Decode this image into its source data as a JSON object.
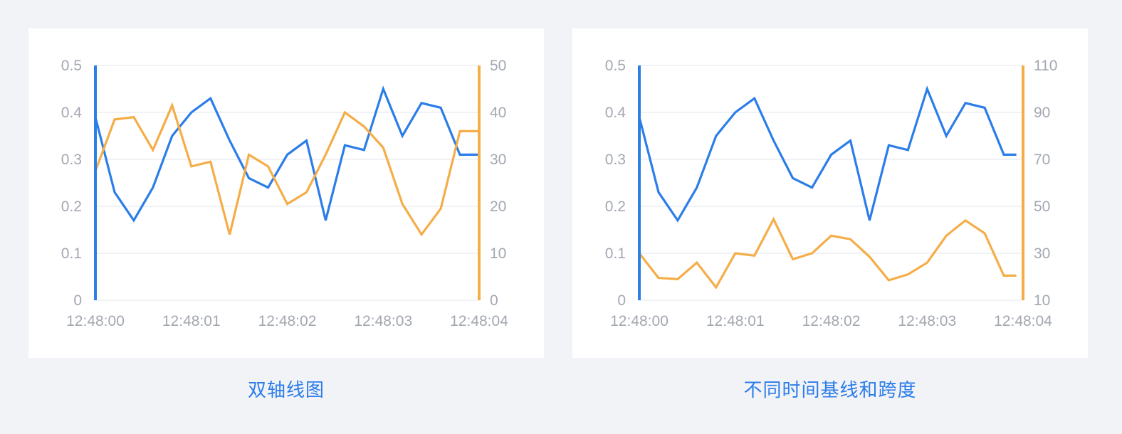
{
  "colors": {
    "left_axis": "#2b7de9",
    "right_axis": "#f5ad47",
    "grid": "#eceef2",
    "tick_text": "#a3a7b1"
  },
  "captions": [
    "双轴线图",
    "不同时间基线和跨度"
  ],
  "chart_data": [
    {
      "type": "line",
      "title": "",
      "x_ticks": [
        "12:48:00",
        "12:48:01",
        "12:48:02",
        "12:48:03",
        "12:48:04"
      ],
      "x_range": [
        0,
        4
      ],
      "y_left": {
        "range": [
          0,
          0.5
        ],
        "ticks": [
          "0",
          "0.1",
          "0.2",
          "0.3",
          "0.4",
          "0.5"
        ]
      },
      "y_right": {
        "range": [
          0,
          50
        ],
        "ticks": [
          "0",
          "10",
          "20",
          "30",
          "40",
          "50"
        ]
      },
      "grid": true,
      "series": [
        {
          "axis": "left",
          "color": "#2b7de9",
          "x": [
            0,
            0.2,
            0.4,
            0.6,
            0.8,
            1.0,
            1.2,
            1.4,
            1.6,
            1.8,
            2.0,
            2.2,
            2.4,
            2.6,
            2.8,
            3.0,
            3.2,
            3.4,
            3.6,
            3.8,
            4.0
          ],
          "values": [
            0.39,
            0.23,
            0.17,
            0.24,
            0.35,
            0.4,
            0.43,
            0.34,
            0.26,
            0.24,
            0.31,
            0.34,
            0.17,
            0.33,
            0.32,
            0.45,
            0.35,
            0.42,
            0.41,
            0.31,
            0.31
          ]
        },
        {
          "axis": "right",
          "color": "#f5ad47",
          "x": [
            0,
            0.2,
            0.4,
            0.6,
            0.8,
            1.0,
            1.2,
            1.4,
            1.6,
            1.8,
            2.0,
            2.2,
            2.4,
            2.6,
            2.8,
            3.0,
            3.2,
            3.4,
            3.6,
            3.8,
            4.0
          ],
          "values": [
            27.5,
            38.5,
            39,
            32,
            41.5,
            28.5,
            29.5,
            14,
            31,
            28.5,
            20.5,
            23,
            31,
            40,
            37,
            32.5,
            20.5,
            14,
            19.5,
            36,
            36
          ]
        }
      ]
    },
    {
      "type": "line",
      "title": "",
      "x_ticks": [
        "12:48:00",
        "12:48:01",
        "12:48:02",
        "12:48:03",
        "12:48:04"
      ],
      "x_range": [
        0,
        4
      ],
      "y_left": {
        "range": [
          0,
          0.5
        ],
        "ticks": [
          "0",
          "0.1",
          "0.2",
          "0.3",
          "0.4",
          "0.5"
        ]
      },
      "y_right": {
        "range": [
          10,
          110
        ],
        "ticks": [
          "10",
          "30",
          "50",
          "70",
          "90",
          "110"
        ]
      },
      "grid": true,
      "series": [
        {
          "axis": "left",
          "color": "#2b7de9",
          "x": [
            0,
            0.2,
            0.4,
            0.6,
            0.8,
            1.0,
            1.2,
            1.4,
            1.6,
            1.8,
            2.0,
            2.2,
            2.4,
            2.6,
            2.8,
            3.0,
            3.2,
            3.4,
            3.6,
            3.8,
            3.93
          ],
          "values": [
            0.39,
            0.23,
            0.17,
            0.24,
            0.35,
            0.4,
            0.43,
            0.34,
            0.26,
            0.24,
            0.31,
            0.34,
            0.17,
            0.33,
            0.32,
            0.45,
            0.35,
            0.42,
            0.41,
            0.31,
            0.31
          ]
        },
        {
          "axis": "right",
          "color": "#f5ad47",
          "x": [
            0,
            0.2,
            0.4,
            0.6,
            0.8,
            1.0,
            1.2,
            1.4,
            1.6,
            1.8,
            2.0,
            2.2,
            2.4,
            2.6,
            2.8,
            3.0,
            3.2,
            3.4,
            3.6,
            3.8,
            3.93
          ],
          "values": [
            30,
            19.5,
            19,
            26,
            15.5,
            30,
            29,
            44.5,
            27.5,
            30,
            37.5,
            36,
            28.5,
            18.5,
            21,
            26,
            37.5,
            44,
            38.5,
            20.5,
            20.5
          ]
        }
      ]
    }
  ]
}
